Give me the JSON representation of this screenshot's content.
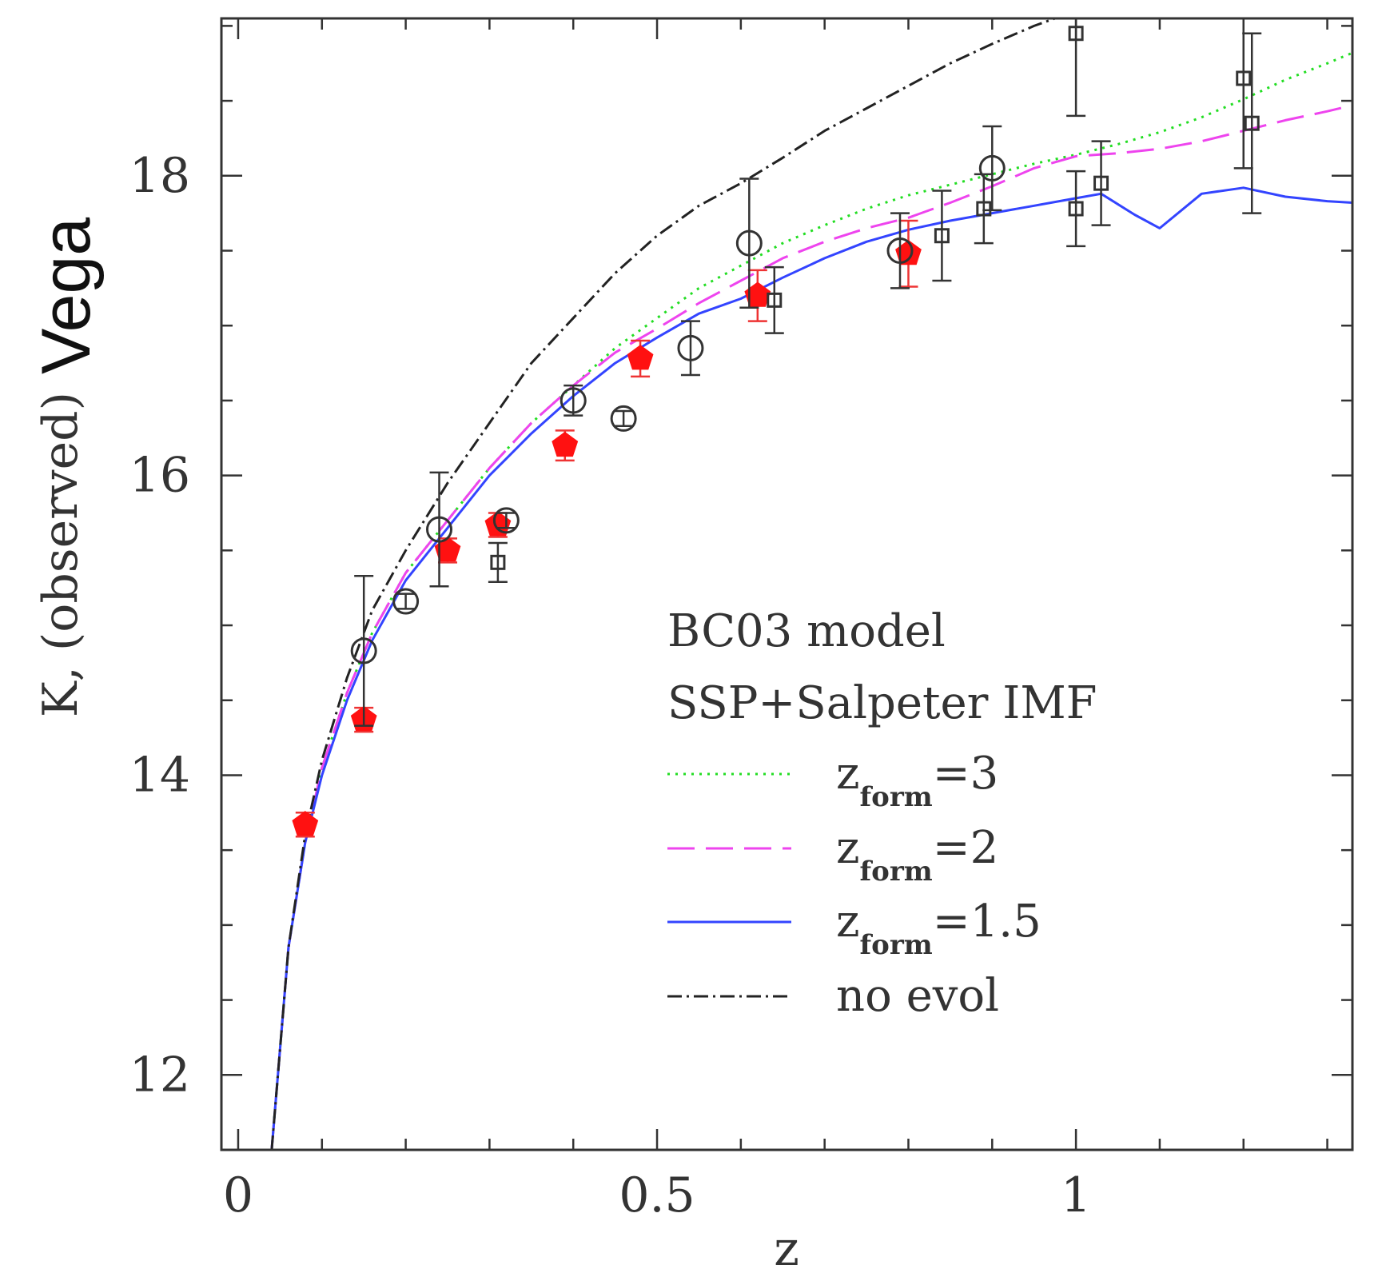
{
  "chart_data": {
    "type": "scatter",
    "title": "",
    "xlabel": "z",
    "ylabel": "K, (observed)",
    "ylabel_suffix": "Vega",
    "xlim": [
      -0.02,
      1.33
    ],
    "ylim": [
      11.5,
      19.05
    ],
    "x_ticks": [
      {
        "value": 0,
        "label": "0"
      },
      {
        "value": 0.5,
        "label": "0.5"
      },
      {
        "value": 1,
        "label": "1"
      }
    ],
    "y_ticks": [
      {
        "value": 12,
        "label": "12"
      },
      {
        "value": 14,
        "label": "14"
      },
      {
        "value": 16,
        "label": "16"
      },
      {
        "value": 18,
        "label": "18"
      }
    ],
    "legend_title": [
      "BC03 model",
      "SSP+Salpeter IMF"
    ],
    "series": [
      {
        "name": "zform=3",
        "label_main": "z",
        "label_sub": "form",
        "label_tail": "=3",
        "style": "dotted",
        "color": "#22dd22",
        "x": [
          0.04,
          0.06,
          0.08,
          0.1,
          0.13,
          0.16,
          0.2,
          0.25,
          0.3,
          0.35,
          0.4,
          0.45,
          0.5,
          0.55,
          0.6,
          0.65,
          0.7,
          0.75,
          0.8,
          0.85,
          0.9,
          0.95,
          1.0,
          1.05,
          1.1,
          1.15,
          1.2,
          1.25,
          1.3,
          1.33
        ],
        "y": [
          11.5,
          12.85,
          13.55,
          14.05,
          14.55,
          14.95,
          15.35,
          15.7,
          16.05,
          16.35,
          16.6,
          16.85,
          17.05,
          17.25,
          17.4,
          17.55,
          17.67,
          17.78,
          17.87,
          17.94,
          18.01,
          18.08,
          18.14,
          18.21,
          18.29,
          18.39,
          18.51,
          18.64,
          18.75,
          18.82
        ]
      },
      {
        "name": "zform=2",
        "label_main": "z",
        "label_sub": "form",
        "label_tail": "=2",
        "style": "dashed",
        "color": "#ee44ee",
        "x": [
          0.04,
          0.06,
          0.08,
          0.1,
          0.13,
          0.16,
          0.2,
          0.25,
          0.3,
          0.35,
          0.4,
          0.45,
          0.5,
          0.55,
          0.6,
          0.65,
          0.7,
          0.75,
          0.8,
          0.85,
          0.9,
          0.95,
          1.0,
          1.05,
          1.1,
          1.15,
          1.2,
          1.25,
          1.3,
          1.33
        ],
        "y": [
          11.5,
          12.85,
          13.55,
          14.05,
          14.55,
          14.95,
          15.35,
          15.7,
          16.05,
          16.35,
          16.6,
          16.82,
          16.98,
          17.15,
          17.3,
          17.45,
          17.56,
          17.65,
          17.72,
          17.82,
          17.93,
          18.05,
          18.13,
          18.15,
          18.18,
          18.23,
          18.3,
          18.37,
          18.43,
          18.47
        ]
      },
      {
        "name": "zform=1.5",
        "label_main": "z",
        "label_sub": "form",
        "label_tail": "=1.5",
        "style": "solid",
        "color": "#3344ff",
        "x": [
          0.04,
          0.06,
          0.08,
          0.1,
          0.13,
          0.16,
          0.2,
          0.25,
          0.3,
          0.35,
          0.4,
          0.45,
          0.5,
          0.55,
          0.6,
          0.65,
          0.7,
          0.75,
          0.8,
          0.85,
          0.9,
          0.95,
          1.0,
          1.03,
          1.07,
          1.1,
          1.15,
          1.2,
          1.25,
          1.3,
          1.33
        ],
        "y": [
          11.5,
          12.85,
          13.55,
          14.0,
          14.5,
          14.9,
          15.3,
          15.65,
          16.0,
          16.28,
          16.53,
          16.75,
          16.92,
          17.08,
          17.18,
          17.32,
          17.45,
          17.56,
          17.64,
          17.7,
          17.75,
          17.8,
          17.85,
          17.88,
          17.74,
          17.65,
          17.88,
          17.92,
          17.86,
          17.83,
          17.82
        ]
      },
      {
        "name": "no evol",
        "label_main": "no evol",
        "label_sub": "",
        "label_tail": "",
        "style": "dashdot",
        "color": "#222222",
        "x": [
          0.04,
          0.06,
          0.08,
          0.1,
          0.13,
          0.16,
          0.2,
          0.25,
          0.3,
          0.35,
          0.4,
          0.45,
          0.5,
          0.55,
          0.6,
          0.65,
          0.7,
          0.75,
          0.8,
          0.85,
          0.9,
          0.95,
          1.0
        ],
        "y": [
          11.5,
          12.85,
          13.6,
          14.1,
          14.65,
          15.1,
          15.5,
          15.95,
          16.35,
          16.75,
          17.05,
          17.35,
          17.6,
          17.8,
          17.95,
          18.12,
          18.3,
          18.45,
          18.6,
          18.75,
          18.88,
          19.0,
          19.1
        ]
      }
    ],
    "data_points": [
      {
        "set": "red-pentagons",
        "marker": "pentagon",
        "color": "#ff1111",
        "points": [
          {
            "x": 0.08,
            "y": 13.67,
            "err": 0.08
          },
          {
            "x": 0.15,
            "y": 14.37,
            "err": 0.08
          },
          {
            "x": 0.25,
            "y": 15.5,
            "err": 0.08
          },
          {
            "x": 0.31,
            "y": 15.67,
            "err": 0.08
          },
          {
            "x": 0.39,
            "y": 16.2,
            "err": 0.1
          },
          {
            "x": 0.48,
            "y": 16.78,
            "err": 0.12
          },
          {
            "x": 0.62,
            "y": 17.2,
            "err": 0.17
          },
          {
            "x": 0.8,
            "y": 17.48,
            "err": 0.22
          }
        ]
      },
      {
        "set": "open-circles",
        "marker": "circle",
        "color": "#333333",
        "points": [
          {
            "x": 0.15,
            "y": 14.83,
            "err": 0.5
          },
          {
            "x": 0.2,
            "y": 15.16,
            "err": 0.05
          },
          {
            "x": 0.24,
            "y": 15.64,
            "err": 0.38
          },
          {
            "x": 0.32,
            "y": 15.7,
            "err": 0.05
          },
          {
            "x": 0.4,
            "y": 16.5,
            "err": 0.1
          },
          {
            "x": 0.46,
            "y": 16.38,
            "err": 0.05
          },
          {
            "x": 0.54,
            "y": 16.85,
            "err": 0.18
          },
          {
            "x": 0.61,
            "y": 17.55,
            "err": 0.43
          },
          {
            "x": 0.79,
            "y": 17.5,
            "err": 0.25
          },
          {
            "x": 0.9,
            "y": 18.05,
            "err": 0.28
          }
        ]
      },
      {
        "set": "open-squares",
        "marker": "square",
        "color": "#333333",
        "points": [
          {
            "x": 0.31,
            "y": 15.42,
            "err": 0.13
          },
          {
            "x": 0.64,
            "y": 17.17,
            "err": 0.22
          },
          {
            "x": 0.84,
            "y": 17.6,
            "err": 0.3
          },
          {
            "x": 0.89,
            "y": 17.78,
            "err": 0.23
          },
          {
            "x": 1.0,
            "y": 17.78,
            "err": 0.25
          },
          {
            "x": 1.0,
            "y": 18.95,
            "err": 0.55
          },
          {
            "x": 1.03,
            "y": 17.95,
            "err": 0.28
          },
          {
            "x": 1.2,
            "y": 18.65,
            "err": 0.6
          },
          {
            "x": 1.21,
            "y": 18.35,
            "err": 0.6
          }
        ]
      }
    ]
  }
}
